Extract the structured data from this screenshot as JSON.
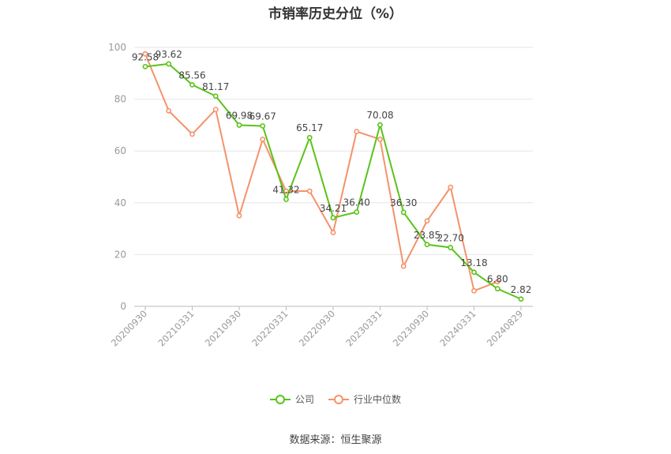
{
  "chart_data": {
    "type": "line",
    "title": "市销率历史分位（%）",
    "xlabel": "",
    "ylabel": "",
    "ylim": [
      0,
      100
    ],
    "yticks": [
      0,
      20,
      40,
      60,
      80,
      100
    ],
    "xtick_labels": [
      "20200930",
      "20210331",
      "20210930",
      "20220331",
      "20220930",
      "20230331",
      "20230930",
      "20240331",
      "20240829"
    ],
    "x": [
      "20200930",
      "20201231",
      "20210331",
      "20210630",
      "20210930",
      "20211231",
      "20220331",
      "20220630",
      "20220930",
      "20221231",
      "20230331",
      "20230630",
      "20230930",
      "20231231",
      "20240331",
      "20240630",
      "20240829"
    ],
    "series": [
      {
        "name": "公司",
        "color": "#5ac318",
        "values": [
          92.58,
          93.62,
          85.56,
          81.17,
          69.98,
          69.67,
          41.32,
          65.17,
          34.21,
          36.4,
          70.08,
          36.3,
          23.85,
          22.7,
          13.18,
          6.8,
          2.82
        ],
        "labels": [
          "92.58",
          "93.62",
          "85.56",
          "81.17",
          "69.98",
          "69.67",
          "41.32",
          "65.17",
          "34.21",
          "36.40",
          "70.08",
          "36.30",
          "23.85",
          "22.70",
          "13.18",
          "6.80",
          "2.82"
        ]
      },
      {
        "name": "行业中位数",
        "color": "#f5926a",
        "values": [
          97.5,
          75.5,
          66.5,
          76,
          35,
          64.5,
          44.5,
          44.5,
          28.5,
          67.5,
          64.5,
          15.5,
          33,
          46,
          6,
          9.5,
          null
        ]
      }
    ],
    "grid": true,
    "legend": "bottom-center"
  },
  "source": "数据来源：恒生聚源"
}
